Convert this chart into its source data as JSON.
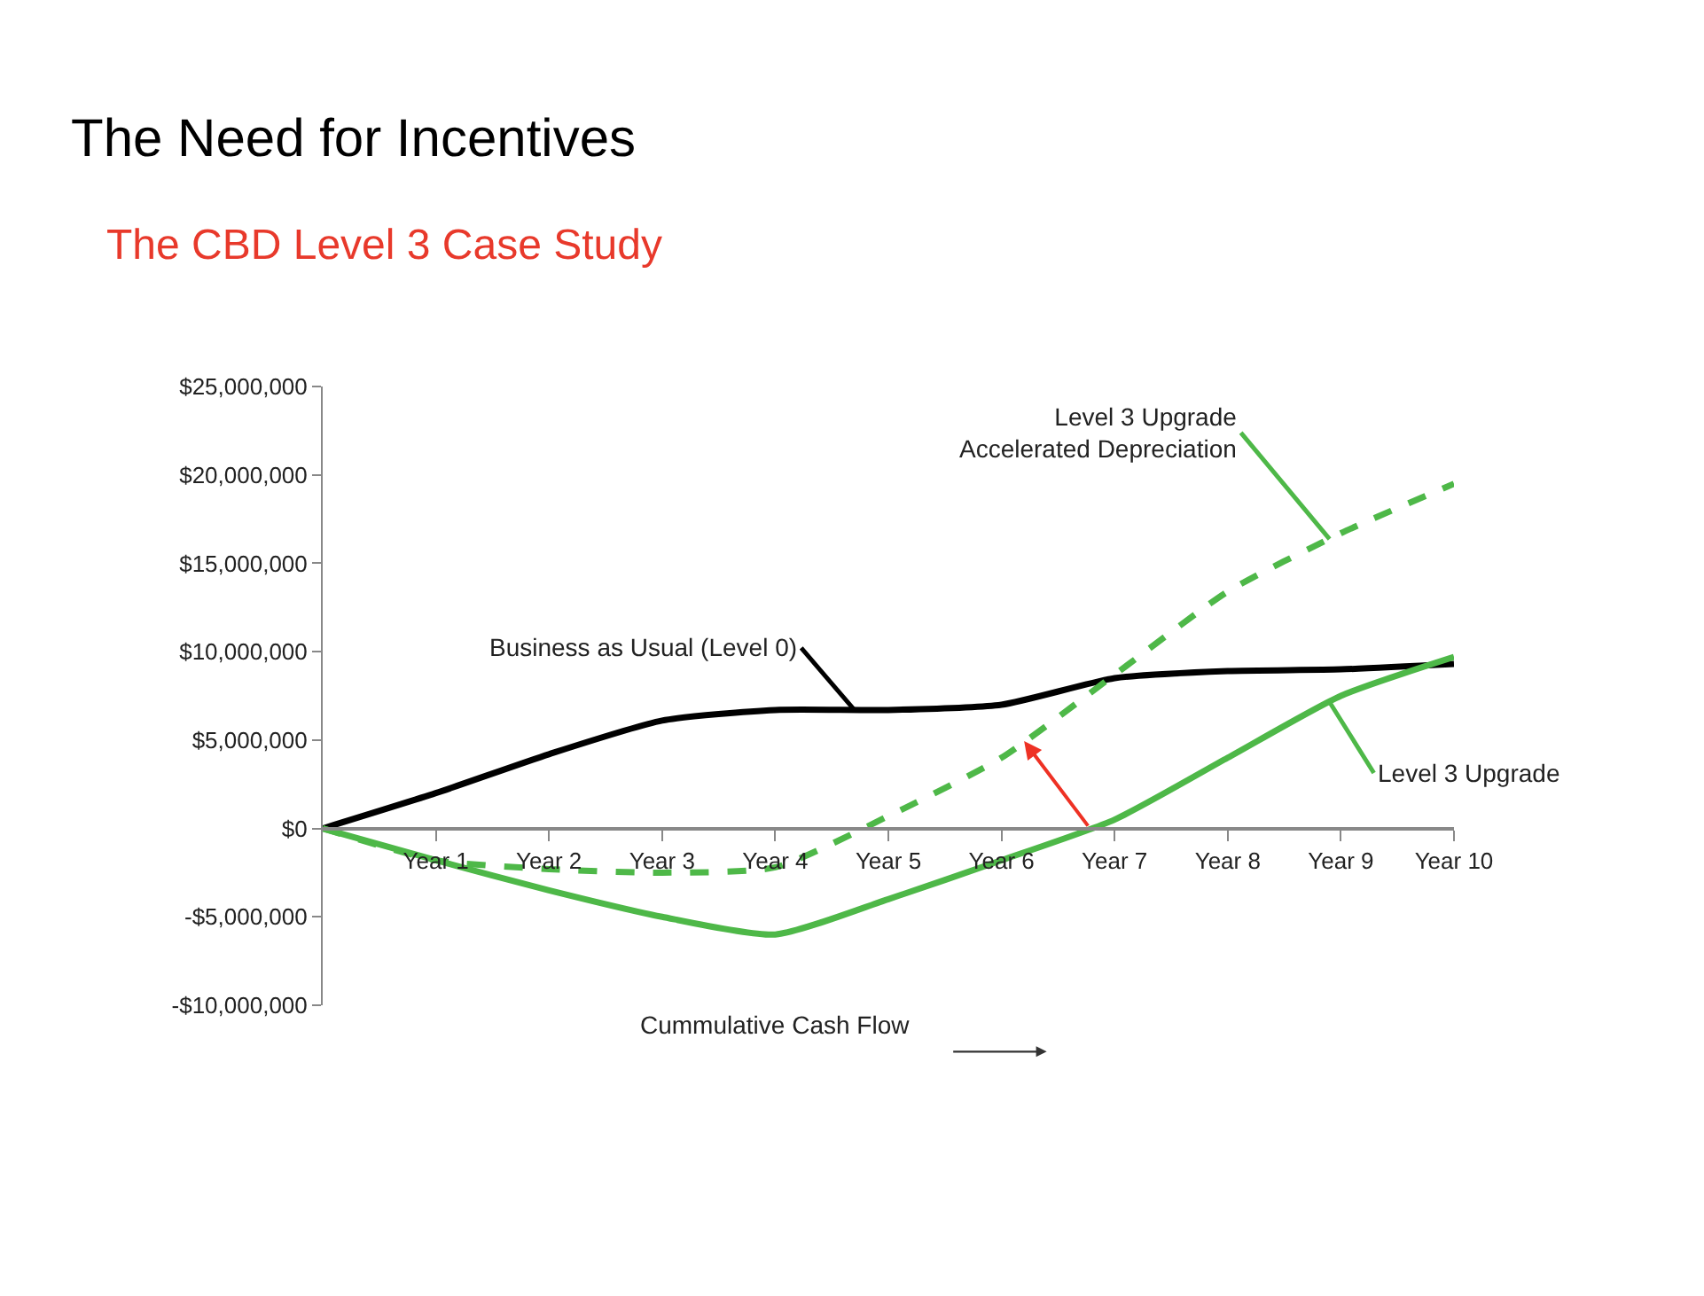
{
  "chart_data": {
    "type": "line",
    "title": "The Need for Incentives",
    "subtitle": "The CBD Level 3 Case Study",
    "xlabel": "Cummulative Cash Flow",
    "categories": [
      null,
      "Year 1",
      "Year 2",
      "Year 3",
      "Year 4",
      "Year 5",
      "Year 6",
      "Year 7",
      "Year 8",
      "Year 9",
      "Year 10"
    ],
    "series": [
      {
        "name": "Business as Usual (Level 0)",
        "color": "#000000",
        "line_style": "solid",
        "values": [
          0,
          2000000,
          4200000,
          6100000,
          6700000,
          6700000,
          7000000,
          8500000,
          8900000,
          9000000,
          9300000
        ]
      },
      {
        "name": "Level 3 Upgrade\nAccelerated Depreciation",
        "color": "#4eb848",
        "line_style": "dashed",
        "values": [
          0,
          -1800000,
          -2300000,
          -2500000,
          -2200000,
          700000,
          4000000,
          8700000,
          13400000,
          16700000,
          19500000
        ]
      },
      {
        "name": "Level 3 Upgrade",
        "color": "#4eb848",
        "line_style": "solid",
        "values": [
          0,
          -1800000,
          -3500000,
          -5000000,
          -6000000,
          -4000000,
          -1800000,
          500000,
          4000000,
          7500000,
          9700000
        ]
      }
    ],
    "ylim": [
      -10000000,
      25000000
    ],
    "yticks": [
      {
        "value": -10000000,
        "label": "-$10,000,000"
      },
      {
        "value": -5000000,
        "label": "-$5,000,000"
      },
      {
        "value": 0,
        "label": "$0"
      },
      {
        "value": 5000000,
        "label": "$5,000,000"
      },
      {
        "value": 10000000,
        "label": "$10,000,000"
      },
      {
        "value": 15000000,
        "label": "$15,000,000"
      },
      {
        "value": 20000000,
        "label": "$20,000,000"
      },
      {
        "value": 25000000,
        "label": "$25,000,000"
      }
    ],
    "grid": false,
    "legend": false,
    "marker": "none"
  }
}
